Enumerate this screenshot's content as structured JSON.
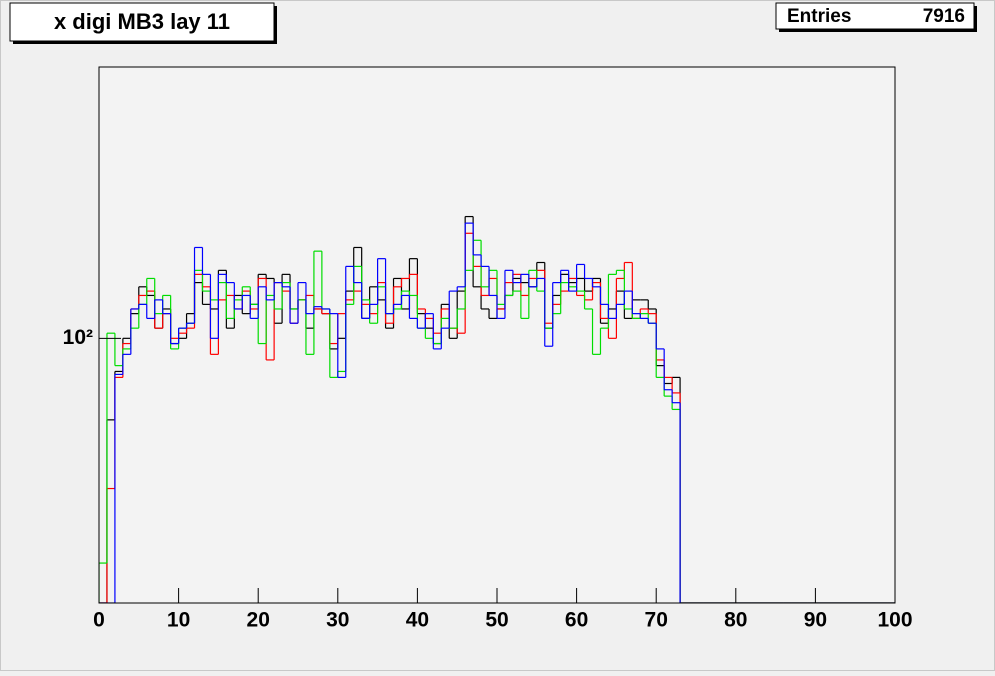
{
  "chart_data": {
    "type": "histogram",
    "title": "x digi MB3 lay 11",
    "stats": {
      "label": "Entries",
      "value": 7916
    },
    "log_y": true,
    "bins": [
      0,
      1,
      2,
      3,
      4,
      5,
      6,
      7,
      8,
      9,
      10,
      11,
      12,
      13,
      14,
      15,
      16,
      17,
      18,
      19,
      20,
      21,
      22,
      23,
      24,
      25,
      26,
      27,
      28,
      29,
      30,
      31,
      32,
      33,
      34,
      35,
      36,
      37,
      38,
      39,
      40,
      41,
      42,
      43,
      44,
      45,
      46,
      47,
      48,
      49,
      50,
      51,
      52,
      53,
      54,
      55,
      56,
      57,
      58,
      59,
      60,
      61,
      62,
      63,
      64,
      65,
      66,
      67,
      68,
      69,
      70,
      71,
      72,
      73,
      74,
      75,
      76,
      77,
      78,
      79,
      80,
      81,
      82,
      83,
      84,
      85,
      86,
      87,
      88,
      89,
      90,
      91,
      92,
      93,
      94,
      95,
      96,
      97,
      98,
      99,
      100
    ],
    "xlim": [
      0,
      100
    ],
    "xticks": [
      0,
      10,
      20,
      30,
      40,
      50,
      60,
      70,
      80,
      90,
      100
    ],
    "ylim": [
      36,
      285
    ],
    "yticks": [
      {
        "value": 100,
        "label": "10²"
      }
    ],
    "series": [
      {
        "color": "#000000",
        "values": [
          0,
          73,
          88,
          100,
          110,
          122,
          118,
          104,
          112,
          98,
          100,
          110,
          124,
          114,
          112,
          130,
          104,
          118,
          110,
          114,
          128,
          126,
          106,
          128,
          112,
          116,
          104,
          112,
          110,
          96,
          100,
          120,
          142,
          108,
          122,
          116,
          104,
          126,
          112,
          136,
          110,
          104,
          98,
          114,
          100,
          120,
          160,
          122,
          112,
          108,
          112,
          118,
          126,
          124,
          122,
          134,
          104,
          118,
          128,
          124,
          126,
          120,
          126,
          106,
          112,
          120,
          108,
          116,
          116,
          112,
          90,
          84,
          86,
          0,
          0,
          0,
          0,
          0,
          0,
          0,
          0,
          0,
          0,
          0,
          0,
          0,
          0,
          0,
          0,
          0,
          0,
          0,
          0,
          0,
          0,
          0,
          0,
          0,
          0,
          0
        ]
      },
      {
        "color": "#ff0000",
        "values": [
          0,
          56,
          86,
          98,
          112,
          118,
          120,
          104,
          110,
          100,
          102,
          104,
          128,
          122,
          94,
          116,
          118,
          112,
          120,
          112,
          126,
          92,
          124,
          120,
          106,
          116,
          118,
          112,
          110,
          98,
          110,
          116,
          120,
          114,
          110,
          124,
          106,
          122,
          126,
          128,
          112,
          108,
          102,
          112,
          104,
          102,
          150,
          132,
          118,
          126,
          112,
          124,
          128,
          118,
          126,
          130,
          106,
          114,
          120,
          126,
          118,
          116,
          124,
          108,
          100,
          126,
          134,
          108,
          112,
          110,
          92,
          86,
          81,
          0,
          0,
          0,
          0,
          0,
          0,
          0,
          0,
          0,
          0,
          0,
          0,
          0,
          0,
          0,
          0,
          0,
          0,
          0,
          0,
          0,
          0,
          0,
          0,
          0,
          0,
          0
        ]
      },
      {
        "color": "#00dd00",
        "values": [
          42,
          102,
          90,
          96,
          104,
          114,
          126,
          110,
          118,
          96,
          104,
          106,
          130,
          120,
          116,
          124,
          108,
          116,
          122,
          114,
          98,
          118,
          112,
          124,
          112,
          116,
          94,
          140,
          112,
          86,
          88,
          114,
          132,
          116,
          106,
          122,
          110,
          112,
          120,
          118,
          104,
          100,
          98,
          108,
          104,
          112,
          130,
          146,
          122,
          130,
          114,
          118,
          120,
          108,
          130,
          120,
          104,
          110,
          124,
          122,
          120,
          112,
          94,
          104,
          128,
          130,
          112,
          108,
          110,
          106,
          86,
          80,
          76,
          0,
          0,
          0,
          0,
          0,
          0,
          0,
          0,
          0,
          0,
          0,
          0,
          0,
          0,
          0,
          0,
          0,
          0,
          0,
          0,
          0,
          0,
          0,
          0,
          0,
          0,
          0
        ]
      },
      {
        "color": "#0000ff",
        "values": [
          0,
          0,
          87,
          94,
          112,
          114,
          108,
          116,
          110,
          98,
          104,
          106,
          142,
          128,
          100,
          128,
          124,
          112,
          118,
          108,
          122,
          116,
          124,
          122,
          106,
          124,
          110,
          113,
          112,
          110,
          86,
          132,
          124,
          108,
          114,
          136,
          110,
          114,
          118,
          108,
          104,
          110,
          96,
          104,
          120,
          122,
          156,
          138,
          132,
          118,
          108,
          130,
          124,
          128,
          122,
          126,
          97,
          124,
          130,
          120,
          133,
          126,
          122,
          114,
          108,
          114,
          120,
          110,
          108,
          106,
          96,
          82,
          78,
          0,
          0,
          0,
          0,
          0,
          0,
          0,
          0,
          0,
          0,
          0,
          0,
          0,
          0,
          0,
          0,
          0,
          0,
          0,
          0,
          0,
          0,
          0,
          0,
          0,
          0,
          0
        ]
      }
    ]
  }
}
